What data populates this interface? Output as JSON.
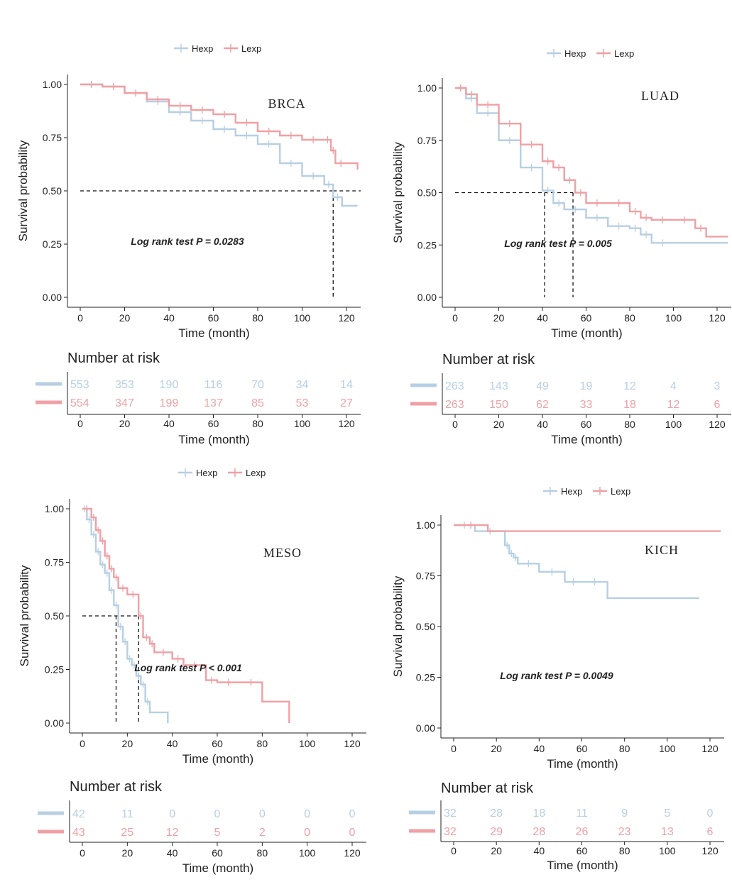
{
  "colors": {
    "hexp": "#b7cfe3",
    "lexp": "#f0a0a5",
    "axis": "#222222"
  },
  "panels": [
    {
      "cancer": "BRCA",
      "pvalue": "Log rank test P = 0.0283",
      "legend": [
        "Hexp",
        "Lexp"
      ],
      "chart_data": {
        "type": "line",
        "title": "BRCA",
        "xlabel": "Time (month)",
        "ylabel": "Survival probability",
        "xlim": [
          0,
          125
        ],
        "ylim": [
          0,
          1.05
        ],
        "xticks": [
          0,
          20,
          40,
          60,
          80,
          100,
          120
        ],
        "yticks": [
          "0.00",
          "0.25",
          "0.50",
          "0.75",
          "1.00"
        ],
        "series": [
          {
            "name": "Hexp",
            "x": [
              0,
              10,
              20,
              30,
              40,
              50,
              60,
              70,
              80,
              90,
              100,
              110,
              114,
              118,
              125
            ],
            "y": [
              1.0,
              0.99,
              0.96,
              0.92,
              0.87,
              0.83,
              0.79,
              0.76,
              0.72,
              0.63,
              0.57,
              0.53,
              0.47,
              0.43,
              0.43
            ]
          },
          {
            "name": "Lexp",
            "x": [
              0,
              10,
              20,
              30,
              40,
              50,
              60,
              70,
              80,
              90,
              100,
              110,
              113,
              115,
              120,
              125
            ],
            "y": [
              1.0,
              0.99,
              0.96,
              0.93,
              0.9,
              0.88,
              0.86,
              0.82,
              0.78,
              0.76,
              0.74,
              0.74,
              0.69,
              0.63,
              0.63,
              0.6
            ]
          }
        ],
        "medians": [
          114
        ],
        "risk_table": {
          "title": "Number at risk",
          "xlabel": "Time (month)",
          "ticks": [
            0,
            20,
            40,
            60,
            80,
            100,
            120
          ],
          "Hexp": [
            "553",
            "353",
            "190",
            "116",
            "70",
            "34",
            "14"
          ],
          "Lexp": [
            "554",
            "347",
            "199",
            "137",
            "85",
            "53",
            "27"
          ]
        }
      }
    },
    {
      "cancer": "LUAD",
      "pvalue": "Log rank test P = 0.005",
      "legend": [
        "Hexp",
        "Lexp"
      ],
      "chart_data": {
        "type": "line",
        "title": "LUAD",
        "xlabel": "Time (month)",
        "ylabel": "Survival probability",
        "xlim": [
          0,
          125
        ],
        "ylim": [
          0,
          1.05
        ],
        "xticks": [
          0,
          20,
          40,
          60,
          80,
          100,
          120
        ],
        "yticks": [
          "0.00",
          "0.25",
          "0.50",
          "0.75",
          "1.00"
        ],
        "series": [
          {
            "name": "Hexp",
            "x": [
              0,
              5,
              10,
              20,
              30,
              40,
              45,
              50,
              60,
              70,
              80,
              85,
              90,
              100,
              125
            ],
            "y": [
              1.0,
              0.95,
              0.88,
              0.75,
              0.62,
              0.51,
              0.45,
              0.42,
              0.38,
              0.34,
              0.33,
              0.3,
              0.26,
              0.26,
              0.26
            ]
          },
          {
            "name": "Lexp",
            "x": [
              0,
              5,
              10,
              20,
              30,
              40,
              45,
              50,
              55,
              60,
              70,
              80,
              85,
              90,
              100,
              110,
              115,
              125
            ],
            "y": [
              1.0,
              0.97,
              0.92,
              0.83,
              0.73,
              0.65,
              0.62,
              0.56,
              0.5,
              0.45,
              0.45,
              0.41,
              0.38,
              0.37,
              0.37,
              0.33,
              0.29,
              0.29
            ]
          }
        ],
        "medians": [
          41,
          54
        ],
        "risk_table": {
          "title": "Number at risk",
          "xlabel": "Time (month)",
          "ticks": [
            0,
            20,
            40,
            60,
            80,
            100,
            120
          ],
          "Hexp": [
            "263",
            "143",
            "49",
            "19",
            "12",
            "4",
            "3"
          ],
          "Lexp": [
            "263",
            "150",
            "62",
            "33",
            "18",
            "12",
            "6"
          ]
        }
      }
    },
    {
      "cancer": "MESO",
      "pvalue": "Log rank test P < 0.001",
      "legend": [
        "Hexp",
        "Lexp"
      ],
      "chart_data": {
        "type": "line",
        "title": "MESO",
        "xlabel": "Time (month)",
        "ylabel": "Survival probability",
        "xlim": [
          0,
          125
        ],
        "ylim": [
          0,
          1.05
        ],
        "xticks": [
          0,
          20,
          40,
          60,
          80,
          100,
          120
        ],
        "yticks": [
          "0.00",
          "0.25",
          "0.50",
          "0.75",
          "1.00"
        ],
        "series": [
          {
            "name": "Hexp",
            "x": [
              0,
              2,
              4,
              6,
              8,
              10,
              12,
              14,
              16,
              18,
              20,
              22,
              24,
              26,
              28,
              30,
              38
            ],
            "y": [
              1.0,
              0.95,
              0.88,
              0.8,
              0.74,
              0.7,
              0.62,
              0.55,
              0.45,
              0.38,
              0.3,
              0.27,
              0.22,
              0.18,
              0.1,
              0.05,
              0.0
            ]
          },
          {
            "name": "Lexp",
            "x": [
              0,
              4,
              6,
              8,
              10,
              12,
              14,
              16,
              20,
              25,
              27,
              30,
              32,
              40,
              45,
              55,
              60,
              70,
              80,
              92
            ],
            "y": [
              1.0,
              0.96,
              0.9,
              0.85,
              0.78,
              0.72,
              0.68,
              0.63,
              0.6,
              0.5,
              0.4,
              0.37,
              0.33,
              0.3,
              0.27,
              0.2,
              0.19,
              0.19,
              0.1,
              0.0
            ]
          }
        ],
        "medians": [
          15,
          25
        ],
        "risk_table": {
          "title": "Number at risk",
          "xlabel": "Time (month)",
          "ticks": [
            0,
            20,
            40,
            60,
            80,
            100,
            120
          ],
          "Hexp": [
            "42",
            "11",
            "0",
            "0",
            "0",
            "0",
            "0"
          ],
          "Lexp": [
            "43",
            "25",
            "12",
            "5",
            "2",
            "0",
            "0"
          ]
        }
      }
    },
    {
      "cancer": "KICH",
      "pvalue": "Log rank test P = 0.0049",
      "legend": [
        "Hexp",
        "Lexp"
      ],
      "chart_data": {
        "type": "line",
        "title": "KICH",
        "xlabel": "Time (month)",
        "ylabel": "Survival probability",
        "xlim": [
          0,
          125
        ],
        "ylim": [
          0,
          1.05
        ],
        "xticks": [
          0,
          20,
          40,
          60,
          80,
          100,
          120
        ],
        "yticks": [
          "0.00",
          "0.25",
          "0.50",
          "0.75",
          "1.00"
        ],
        "series": [
          {
            "name": "Hexp",
            "x": [
              0,
              10,
              24,
              26,
              28,
              30,
              40,
              52,
              60,
              72,
              115
            ],
            "y": [
              1.0,
              0.97,
              0.9,
              0.86,
              0.84,
              0.81,
              0.77,
              0.72,
              0.72,
              0.64,
              0.64
            ]
          },
          {
            "name": "Lexp",
            "x": [
              0,
              16,
              125
            ],
            "y": [
              1.0,
              0.97,
              0.97
            ]
          }
        ],
        "medians": [],
        "risk_table": {
          "title": "Number at risk",
          "xlabel": "Time (month)",
          "ticks": [
            0,
            20,
            40,
            60,
            80,
            100,
            120
          ],
          "Hexp": [
            "32",
            "28",
            "18",
            "11",
            "9",
            "5",
            "0"
          ],
          "Lexp": [
            "32",
            "29",
            "28",
            "26",
            "23",
            "13",
            "6"
          ]
        }
      }
    }
  ]
}
